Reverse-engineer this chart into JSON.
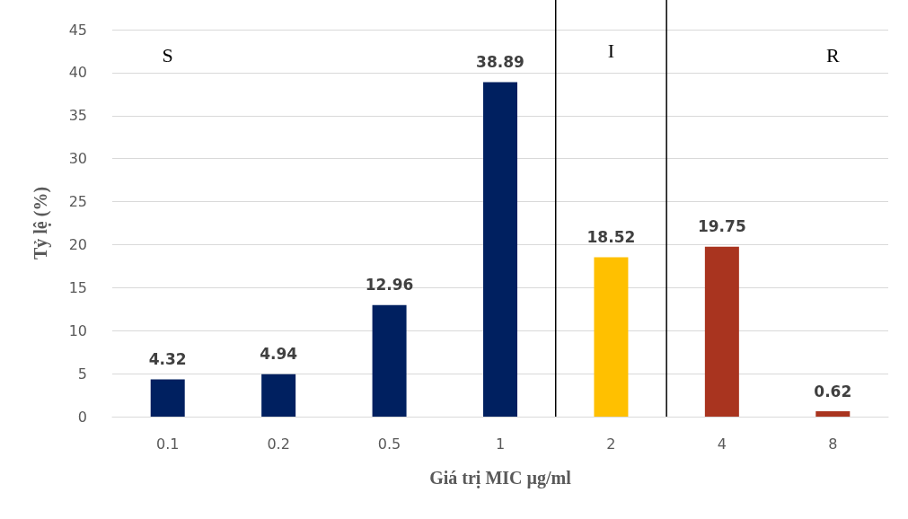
{
  "chart_data": {
    "type": "bar",
    "categories": [
      "0.1",
      "0.2",
      "0.5",
      "1",
      "2",
      "4",
      "8"
    ],
    "values": [
      4.32,
      4.94,
      12.96,
      38.89,
      18.52,
      19.75,
      0.62
    ],
    "colors": [
      "#002060",
      "#002060",
      "#002060",
      "#002060",
      "#ffc000",
      "#a9341f",
      "#a9341f"
    ],
    "data_labels": true,
    "xlabel": "Giá trị MIC µg/ml",
    "ylabel": "Tỷ lệ (%)",
    "ylim": [
      0,
      45
    ],
    "yticks": [
      0,
      5,
      10,
      15,
      20,
      25,
      30,
      35,
      40,
      45
    ],
    "grid": "y",
    "annotations": [
      {
        "text": "S",
        "x": "0.1",
        "y": 42
      },
      {
        "text": "I",
        "x": "2",
        "y": 42.5
      },
      {
        "text": "R",
        "x": "8",
        "y": 42
      }
    ]
  }
}
